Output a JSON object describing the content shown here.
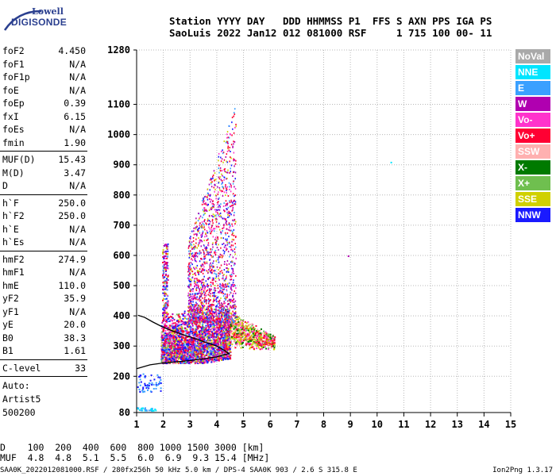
{
  "logo": {
    "top": "Lowell",
    "main": "DIGISONDE"
  },
  "header": {
    "line1": "Station YYYY DAY   DDD HHMMSS P1  FFS S AXN PPS IGA PS",
    "line2": "SaoLuis 2022 Jan12 012 081000 RSF     1 715 100 00- 11"
  },
  "params": [
    {
      "label": "foF2",
      "value": "4.450"
    },
    {
      "label": "foF1",
      "value": "N/A"
    },
    {
      "label": "foF1p",
      "value": "N/A"
    },
    {
      "label": "foE",
      "value": "N/A"
    },
    {
      "label": "foEp",
      "value": "0.39"
    },
    {
      "label": "fxI",
      "value": "6.15"
    },
    {
      "label": "foEs",
      "value": "N/A"
    },
    {
      "label": "fmin",
      "value": "1.90"
    },
    {
      "sep": true
    },
    {
      "label": "MUF(D)",
      "value": "15.43"
    },
    {
      "label": "M(D)",
      "value": "3.47"
    },
    {
      "label": "D",
      "value": "N/A"
    },
    {
      "sep": true
    },
    {
      "label": "h`F",
      "value": "250.0"
    },
    {
      "label": "h`F2",
      "value": "250.0"
    },
    {
      "label": "h`E",
      "value": "N/A"
    },
    {
      "label": "h`Es",
      "value": "N/A"
    },
    {
      "sep": true
    },
    {
      "label": "hmF2",
      "value": "274.9"
    },
    {
      "label": "hmF1",
      "value": "N/A"
    },
    {
      "label": "hmE",
      "value": "110.0"
    },
    {
      "label": "yF2",
      "value": "35.9"
    },
    {
      "label": "yF1",
      "value": "N/A"
    },
    {
      "label": "yE",
      "value": "20.0"
    },
    {
      "label": "B0",
      "value": "38.3"
    },
    {
      "label": "B1",
      "value": "1.61"
    },
    {
      "sep": true
    },
    {
      "label": "C-level",
      "value": "33"
    },
    {
      "sep": true
    }
  ],
  "auto": {
    "l1": "Auto:",
    "l2": "Artist5",
    "l3": "500200"
  },
  "legend": [
    {
      "label": "NoVal",
      "color": "#a9a9a9"
    },
    {
      "label": "NNE",
      "color": "#00e5ff"
    },
    {
      "label": "E",
      "color": "#3aa0ff"
    },
    {
      "label": "W",
      "color": "#b000b0"
    },
    {
      "label": "Vo-",
      "color": "#ff33cc"
    },
    {
      "label": "Vo+",
      "color": "#ff0033"
    },
    {
      "label": "SSW",
      "color": "#ffb0b0"
    },
    {
      "label": "X-",
      "color": "#007a00"
    },
    {
      "label": "X+",
      "color": "#6fbf4f"
    },
    {
      "label": "SSE",
      "color": "#d0d000"
    },
    {
      "label": "NNW",
      "color": "#1a1aff"
    }
  ],
  "chart_data": {
    "type": "scatter",
    "title": "",
    "xlabel": "",
    "ylabel": "",
    "xlim": [
      1,
      15
    ],
    "ylim": [
      80,
      1280
    ],
    "x_ticks": [
      "1",
      "2",
      "3",
      "4",
      "5",
      "6",
      "7",
      "8",
      "9",
      "10",
      "11",
      "12",
      "13",
      "14",
      "15"
    ],
    "y_ticks": [
      {
        "value": 80,
        "label": "80"
      },
      {
        "value": 200,
        "label": "200"
      },
      {
        "value": 300,
        "label": "300"
      },
      {
        "value": 400,
        "label": "400"
      },
      {
        "value": 500,
        "label": "500"
      },
      {
        "value": 600,
        "label": "600"
      },
      {
        "value": 700,
        "label": "700"
      },
      {
        "value": 800,
        "label": "800"
      },
      {
        "value": 900,
        "label": "900"
      },
      {
        "value": 1000,
        "label": "1000"
      },
      {
        "value": 1100,
        "label": "1100"
      },
      {
        "value": 1280,
        "label": "1280"
      }
    ],
    "profile_curve": [
      [
        1,
        225
      ],
      [
        1.5,
        238
      ],
      [
        2,
        244
      ],
      [
        2.5,
        248
      ],
      [
        3,
        252
      ],
      [
        3.5,
        258
      ],
      [
        4,
        264
      ],
      [
        4.2,
        270
      ],
      [
        4.45,
        275
      ],
      [
        4.3,
        285
      ],
      [
        4.0,
        300
      ],
      [
        3.5,
        315
      ],
      [
        3.0,
        330
      ],
      [
        2.5,
        345
      ],
      [
        2,
        362
      ],
      [
        1.6,
        380
      ],
      [
        1.3,
        395
      ],
      [
        1.05,
        402
      ]
    ],
    "trace_region": {
      "f_min": 1.9,
      "f_max": 6.2,
      "h_min": 240,
      "h_max": 1110
    },
    "isolated_points": [
      [
        10.5,
        910
      ],
      [
        8.9,
        600
      ]
    ],
    "grid": true
  },
  "muf_table": {
    "d_label": "D",
    "d_values": "100  200  400  600  800 1000 1500 3000",
    "d_unit": "[km]",
    "muf_label": "MUF",
    "muf_values": "4.8  4.8  5.1  5.5  6.0  6.9  9.3 15.4",
    "muf_unit": "[MHz]"
  },
  "footer": {
    "left": "SAA0K_2022012081000.RSF / 280fx256h 50 kHz 5.0 km / DPS-4 SAA0K 903 / 2.6 S 315.8 E",
    "right": "Ion2Png 1.3.17"
  }
}
